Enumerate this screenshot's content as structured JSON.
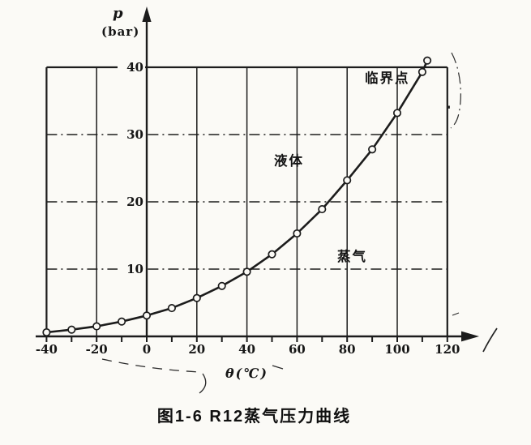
{
  "figure": {
    "caption": "图1-6  R12蒸气压力曲线"
  },
  "chart_data": {
    "type": "line",
    "title": "图1-6 R12蒸气压力曲线",
    "xlabel": "θ(℃)",
    "ylabel_symbol": "p",
    "ylabel_unit": "(bar)",
    "xlim": [
      -40,
      120
    ],
    "ylim": [
      0,
      40
    ],
    "xticks": [
      -40,
      -20,
      0,
      20,
      40,
      60,
      80,
      100,
      120
    ],
    "xminor_step": 10,
    "yticks": [
      10,
      20,
      30,
      40
    ],
    "grid": true,
    "legend": "none",
    "series": [
      {
        "marker": "open-circle",
        "points": [
          {
            "t": -40,
            "p": 0.6
          },
          {
            "t": -30,
            "p": 1.0
          },
          {
            "t": -20,
            "p": 1.5
          },
          {
            "t": -10,
            "p": 2.2
          },
          {
            "t": 0,
            "p": 3.1
          },
          {
            "t": 10,
            "p": 4.2
          },
          {
            "t": 20,
            "p": 5.7
          },
          {
            "t": 30,
            "p": 7.5
          },
          {
            "t": 40,
            "p": 9.6
          },
          {
            "t": 50,
            "p": 12.2
          },
          {
            "t": 60,
            "p": 15.3
          },
          {
            "t": 70,
            "p": 18.9
          },
          {
            "t": 80,
            "p": 23.2
          },
          {
            "t": 90,
            "p": 27.8
          },
          {
            "t": 100,
            "p": 33.2
          },
          {
            "t": 110,
            "p": 39.3
          },
          {
            "t": 112,
            "p": 41.0
          }
        ]
      }
    ],
    "annotations": [
      {
        "name": "critical-point-label",
        "text": "临界点",
        "t": 87.0,
        "p": 40.0
      },
      {
        "name": "liquid-region-label",
        "text": "液体",
        "t": 50.9,
        "p": 27.7
      },
      {
        "name": "vapor-region-label",
        "text": "蒸气",
        "t": 76.0,
        "p": 13.5
      }
    ]
  }
}
